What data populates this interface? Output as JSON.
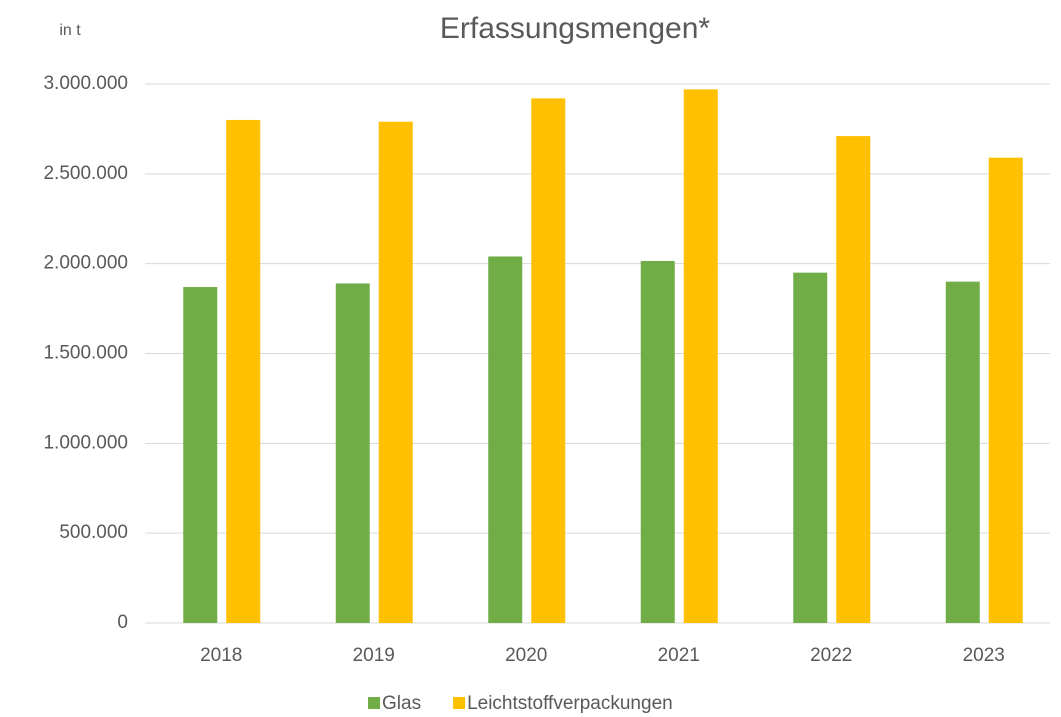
{
  "chart_data": {
    "type": "bar",
    "title": "Erfassungsmengen*",
    "y_label": "in t",
    "categories": [
      "2018",
      "2019",
      "2020",
      "2021",
      "2022",
      "2023"
    ],
    "series": [
      {
        "name": "Glas",
        "color": "#70ad47",
        "values": [
          1870000,
          1890000,
          2040000,
          2015000,
          1950000,
          1900000
        ]
      },
      {
        "name": "Leichtstoffverpackungen",
        "color": "#ffc000",
        "values": [
          2800000,
          2790000,
          2920000,
          2970000,
          2710000,
          2590000
        ]
      }
    ],
    "ylim": [
      0,
      3000000
    ],
    "yticks": [
      0,
      {
        "value": 500000,
        "label": "500.000"
      },
      {
        "value": 1000000,
        "label": "1.000.000"
      },
      {
        "value": 1500000,
        "label": "1.500.000"
      },
      {
        "value": 2000000,
        "label": "2.000.000"
      },
      {
        "value": 2500000,
        "label": "2.500.000"
      },
      {
        "value": 3000000,
        "label": "3.000.000"
      }
    ],
    "grid": true,
    "legend": "bottom"
  }
}
